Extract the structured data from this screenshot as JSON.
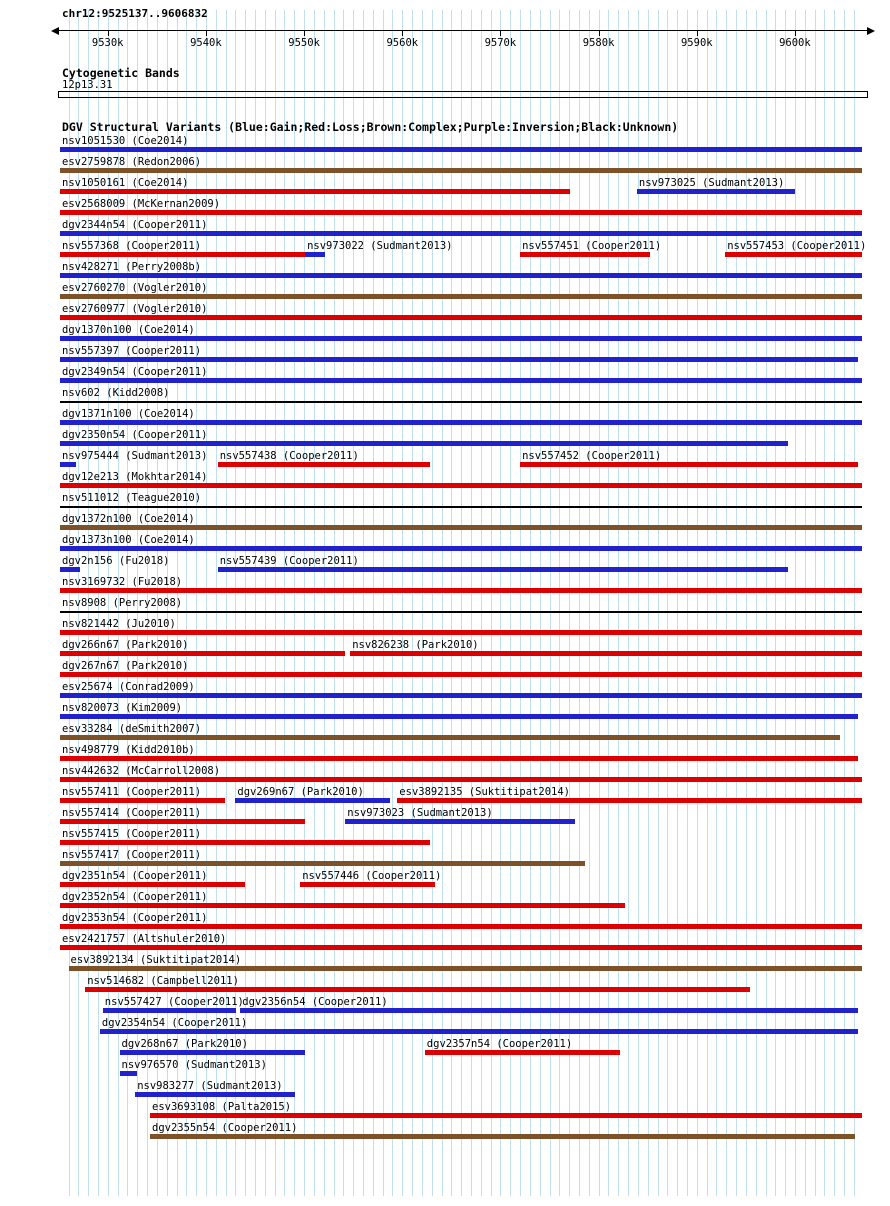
{
  "header": {
    "region_label": "chr12:9525137..9606832"
  },
  "cytobands": {
    "title": "Cytogenetic Bands",
    "band": "12p13.31"
  },
  "dgv": {
    "title": "DGV Structural Variants (Blue:Gain;Red:Loss;Brown:Complex;Purple:Inversion;Black:Unknown)"
  },
  "colors": {
    "gain": "#2222cc",
    "loss": "#dd0000",
    "complex": "#7d5229",
    "inversion": "#800080",
    "unknown": "#000000",
    "grid": "#c0e0f0",
    "axis": "#000000"
  },
  "chart_data": {
    "type": "genome-tracks",
    "region": {
      "chromosome": "chr12",
      "start": 9525137,
      "end": 9606832
    },
    "grid_interval_bp": 1000,
    "axis_ticks": [
      {
        "value": 9530000,
        "label": "9530k"
      },
      {
        "value": 9540000,
        "label": "9540k"
      },
      {
        "value": 9550000,
        "label": "9550k"
      },
      {
        "value": 9560000,
        "label": "9560k"
      },
      {
        "value": 9570000,
        "label": "9570k"
      },
      {
        "value": 9580000,
        "label": "9580k"
      },
      {
        "value": 9590000,
        "label": "9590k"
      },
      {
        "value": 9600000,
        "label": "9600k"
      }
    ],
    "rows": [
      [
        {
          "label": "nsv1051530 (Coe2014)",
          "color": "gain",
          "start": 9525137,
          "end": 9606832
        }
      ],
      [
        {
          "label": "esv2759878 (Redon2006)",
          "color": "complex",
          "start": 9525137,
          "end": 9606832
        }
      ],
      [
        {
          "label": "nsv1050161 (Coe2014)",
          "color": "loss",
          "start": 9525137,
          "end": 9577100
        },
        {
          "label": "nsv973025 (Sudmant2013)",
          "color": "gain",
          "start": 9583900,
          "end": 9600000
        }
      ],
      [
        {
          "label": "esv2568009 (McKernan2009)",
          "color": "loss",
          "start": 9525137,
          "end": 9606832
        }
      ],
      [
        {
          "label": "dgv2344n54 (Cooper2011)",
          "color": "gain",
          "start": 9525137,
          "end": 9606832
        }
      ],
      [
        {
          "label": "nsv557368 (Cooper2011)",
          "color": "loss",
          "start": 9525137,
          "end": 9550100
        },
        {
          "label": "nsv973022 (Sudmant2013)",
          "color": "gain",
          "start": 9550100,
          "end": 9552100
        },
        {
          "label": "nsv557451 (Cooper2011)",
          "color": "loss",
          "start": 9572000,
          "end": 9585200
        },
        {
          "label": "nsv557453 (Cooper2011)",
          "color": "loss",
          "start": 9592900,
          "end": 9606832
        }
      ],
      [
        {
          "label": "nsv428271 (Perry2008b)",
          "color": "gain",
          "start": 9525137,
          "end": 9606832
        }
      ],
      [
        {
          "label": "esv2760270 (Vogler2010)",
          "color": "complex",
          "start": 9525137,
          "end": 9606832
        }
      ],
      [
        {
          "label": "esv2760977 (Vogler2010)",
          "color": "loss",
          "start": 9525137,
          "end": 9606832
        }
      ],
      [
        {
          "label": "dgv1370n100 (Coe2014)",
          "color": "gain",
          "start": 9525137,
          "end": 9606832
        }
      ],
      [
        {
          "label": "nsv557397 (Cooper2011)",
          "color": "gain",
          "start": 9525137,
          "end": 9606400
        }
      ],
      [
        {
          "label": "dgv2349n54 (Cooper2011)",
          "color": "gain",
          "start": 9525137,
          "end": 9606832
        }
      ],
      [
        {
          "label": "nsv602 (Kidd2008)",
          "color": "unknown",
          "start": 9525137,
          "end": 9606832,
          "thin": true
        }
      ],
      [
        {
          "label": "dgv1371n100 (Coe2014)",
          "color": "gain",
          "start": 9525137,
          "end": 9606832
        }
      ],
      [
        {
          "label": "dgv2350n54 (Cooper2011)",
          "color": "gain",
          "start": 9525137,
          "end": 9599300
        }
      ],
      [
        {
          "label": "nsv975444 (Sudmant2013)",
          "color": "gain",
          "start": 9525137,
          "end": 9526800
        },
        {
          "label": "nsv557438 (Cooper2011)",
          "color": "loss",
          "start": 9541200,
          "end": 9562800
        },
        {
          "label": "nsv557452 (Cooper2011)",
          "color": "loss",
          "start": 9572000,
          "end": 9606400
        }
      ],
      [
        {
          "label": "dgv12e213 (Mokhtar2014)",
          "color": "loss",
          "start": 9525137,
          "end": 9606832
        }
      ],
      [
        {
          "label": "nsv511012 (Teague2010)",
          "color": "unknown",
          "start": 9525137,
          "end": 9606832,
          "thin": true
        }
      ],
      [
        {
          "label": "dgv1372n100 (Coe2014)",
          "color": "complex",
          "start": 9525137,
          "end": 9606832
        }
      ],
      [
        {
          "label": "dgv1373n100 (Coe2014)",
          "color": "gain",
          "start": 9525137,
          "end": 9606832
        }
      ],
      [
        {
          "label": "dgv2n156 (Fu2018)",
          "color": "gain",
          "start": 9525137,
          "end": 9527200
        },
        {
          "label": "nsv557439 (Cooper2011)",
          "color": "gain",
          "start": 9541200,
          "end": 9599300
        }
      ],
      [
        {
          "label": "nsv3169732 (Fu2018)",
          "color": "loss",
          "start": 9525137,
          "end": 9606832
        }
      ],
      [
        {
          "label": "nsv8908 (Perry2008)",
          "color": "unknown",
          "start": 9525137,
          "end": 9606832,
          "thin": true
        }
      ],
      [
        {
          "label": "nsv821442 (Ju2010)",
          "color": "loss",
          "start": 9525137,
          "end": 9606832
        }
      ],
      [
        {
          "label": "dgv266n67 (Park2010)",
          "color": "loss",
          "start": 9525137,
          "end": 9554200
        },
        {
          "label": "nsv826238 (Park2010)",
          "color": "loss",
          "start": 9554700,
          "end": 9606832
        }
      ],
      [
        {
          "label": "dgv267n67 (Park2010)",
          "color": "loss",
          "start": 9525137,
          "end": 9606832
        }
      ],
      [
        {
          "label": "esv25674 (Conrad2009)",
          "color": "gain",
          "start": 9525137,
          "end": 9606832
        }
      ],
      [
        {
          "label": "nsv820073 (Kim2009)",
          "color": "gain",
          "start": 9525137,
          "end": 9606400
        }
      ],
      [
        {
          "label": "esv33284 (deSmith2007)",
          "color": "complex",
          "start": 9525137,
          "end": 9604600
        }
      ],
      [
        {
          "label": "nsv498779 (Kidd2010b)",
          "color": "loss",
          "start": 9525137,
          "end": 9606400
        }
      ],
      [
        {
          "label": "nsv442632 (McCarroll2008)",
          "color": "loss",
          "start": 9525137,
          "end": 9606832
        }
      ],
      [
        {
          "label": "nsv557411 (Cooper2011)",
          "color": "loss",
          "start": 9525137,
          "end": 9541900
        },
        {
          "label": "dgv269n67 (Park2010)",
          "color": "gain",
          "start": 9543000,
          "end": 9558800
        },
        {
          "label": "esv3892135 (Suktitipat2014)",
          "color": "loss",
          "start": 9559500,
          "end": 9606832
        }
      ],
      [
        {
          "label": "nsv557414 (Cooper2011)",
          "color": "loss",
          "start": 9525137,
          "end": 9550100
        },
        {
          "label": "nsv973023 (Sudmant2013)",
          "color": "gain",
          "start": 9554200,
          "end": 9577600
        }
      ],
      [
        {
          "label": "nsv557415 (Cooper2011)",
          "color": "loss",
          "start": 9525137,
          "end": 9562800
        }
      ],
      [
        {
          "label": "nsv557417 (Cooper2011)",
          "color": "complex",
          "start": 9525137,
          "end": 9578600
        }
      ],
      [
        {
          "label": "dgv2351n54 (Cooper2011)",
          "color": "loss",
          "start": 9525137,
          "end": 9544000
        },
        {
          "label": "nsv557446 (Cooper2011)",
          "color": "loss",
          "start": 9549600,
          "end": 9563300
        }
      ],
      [
        {
          "label": "dgv2352n54 (Cooper2011)",
          "color": "loss",
          "start": 9525137,
          "end": 9582700
        }
      ],
      [
        {
          "label": "dgv2353n54 (Cooper2011)",
          "color": "loss",
          "start": 9525137,
          "end": 9606832
        }
      ],
      [
        {
          "label": "esv2421757 (Altshuler2010)",
          "color": "loss",
          "start": 9525137,
          "end": 9606832
        }
      ],
      [
        {
          "label": "esv3892134 (Suktitipat2014)",
          "color": "complex",
          "start": 9526000,
          "end": 9606832
        }
      ],
      [
        {
          "label": "nsv514682 (Campbell2011)",
          "color": "loss",
          "start": 9527700,
          "end": 9595400
        }
      ],
      [
        {
          "label": "nsv557427 (Cooper2011)",
          "color": "gain",
          "start": 9529500,
          "end": 9543100
        },
        {
          "label": "dgv2356n54 (Cooper2011)",
          "color": "gain",
          "start": 9543500,
          "end": 9606400
        }
      ],
      [
        {
          "label": "dgv2354n54 (Cooper2011)",
          "color": "gain",
          "start": 9529200,
          "end": 9606400
        }
      ],
      [
        {
          "label": "dgv268n67 (Park2010)",
          "color": "gain",
          "start": 9531200,
          "end": 9550100
        },
        {
          "label": "dgv2357n54 (Cooper2011)",
          "color": "loss",
          "start": 9562300,
          "end": 9582200
        }
      ],
      [
        {
          "label": "nsv976570 (Sudmant2013)",
          "color": "gain",
          "start": 9531200,
          "end": 9533000
        }
      ],
      [
        {
          "label": "nsv983277 (Sudmant2013)",
          "color": "gain",
          "start": 9532800,
          "end": 9549100
        }
      ],
      [
        {
          "label": "esv3693108 (Palta2015)",
          "color": "loss",
          "start": 9534300,
          "end": 9606832
        }
      ],
      [
        {
          "label": "dgv2355n54 (Cooper2011)",
          "color": "complex",
          "start": 9534300,
          "end": 9606100
        }
      ]
    ]
  }
}
